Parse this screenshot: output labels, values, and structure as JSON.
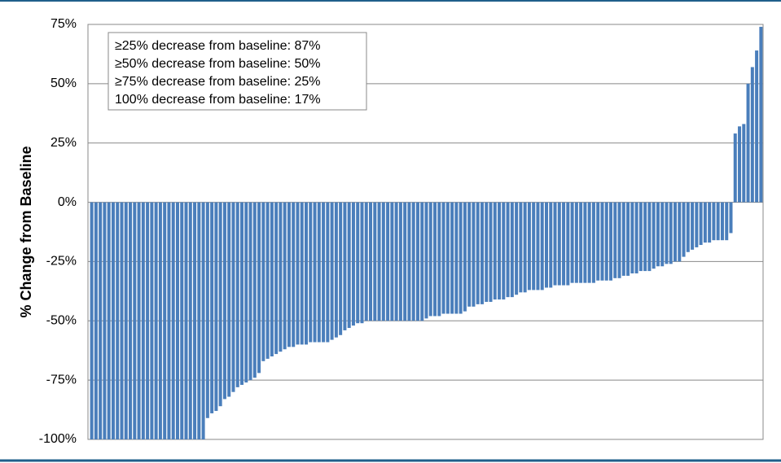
{
  "chart_data": {
    "type": "bar",
    "y_label": "% Change from Baseline",
    "annotations": [
      "≥25% decrease from baseline: 87%",
      "≥50% decrease from baseline: 50%",
      "≥75% decrease from baseline: 25%",
      "100% decrease from baseline: 17%"
    ],
    "values": [
      -100,
      -100,
      -100,
      -100,
      -100,
      -100,
      -100,
      -100,
      -100,
      -100,
      -100,
      -100,
      -100,
      -100,
      -100,
      -100,
      -100,
      -100,
      -100,
      -100,
      -100,
      -100,
      -100,
      -100,
      -100,
      -100,
      -100,
      -91,
      -89,
      -88,
      -86,
      -83,
      -82,
      -80,
      -78,
      -77,
      -76,
      -75,
      -74,
      -72,
      -67,
      -66,
      -65,
      -64,
      -63,
      -62,
      -61,
      -61,
      -60,
      -60,
      -60,
      -59,
      -59,
      -59,
      -59,
      -59,
      -58,
      -57,
      -56,
      -54,
      -53,
      -52,
      -51,
      -51,
      -50,
      -50,
      -50,
      -50,
      -50,
      -50,
      -50,
      -50,
      -50,
      -50,
      -50,
      -50,
      -50,
      -50,
      -49,
      -48,
      -48,
      -48,
      -47,
      -47,
      -47,
      -47,
      -47,
      -46,
      -44,
      -44,
      -43,
      -43,
      -42,
      -42,
      -41,
      -41,
      -41,
      -40,
      -40,
      -39,
      -38,
      -38,
      -37,
      -37,
      -37,
      -37,
      -36,
      -36,
      -35,
      -35,
      -35,
      -35,
      -34,
      -34,
      -34,
      -34,
      -34,
      -34,
      -33,
      -33,
      -33,
      -33,
      -32,
      -32,
      -31,
      -31,
      -30,
      -30,
      -29,
      -29,
      -29,
      -28,
      -27,
      -27,
      -26,
      -26,
      -25,
      -25,
      -23,
      -21,
      -20,
      -19,
      -18,
      -17,
      -17,
      -16,
      -16,
      -16,
      -16,
      -13,
      29,
      32,
      33,
      50,
      57,
      64,
      74
    ],
    "color": "#4a7ebb",
    "ylim": [
      -100,
      75
    ],
    "yticks": [
      {
        "value": -100,
        "label": "-100%"
      },
      {
        "value": -75,
        "label": "-75%"
      },
      {
        "value": -50,
        "label": "-50%"
      },
      {
        "value": -25,
        "label": "-25%"
      },
      {
        "value": 0,
        "label": "0%"
      },
      {
        "value": 25,
        "label": "25%"
      },
      {
        "value": 50,
        "label": "50%"
      },
      {
        "value": 75,
        "label": "75%"
      }
    ],
    "grid": true
  }
}
